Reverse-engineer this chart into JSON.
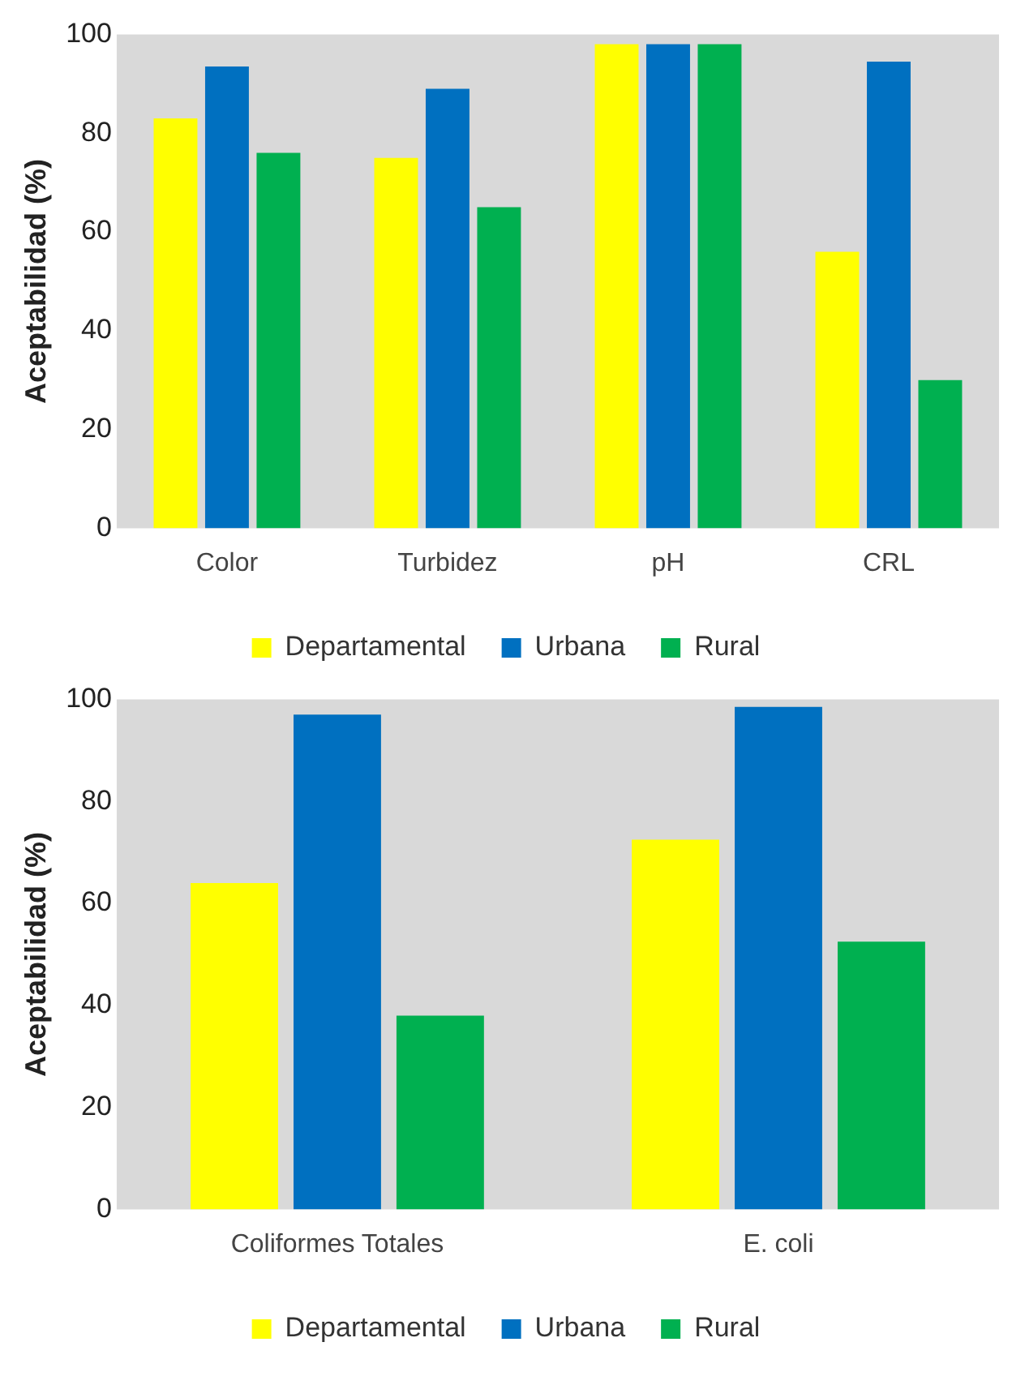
{
  "chart_data": [
    {
      "type": "bar",
      "ylabel": "Aceptabilidad (%)",
      "categories": [
        "Color",
        "Turbidez",
        "pH",
        "CRL"
      ],
      "ylim": [
        0,
        100
      ],
      "yticks": [
        0,
        20,
        40,
        60,
        80,
        100
      ],
      "grid": false,
      "legend": "bottom",
      "series": [
        {
          "name": "Departamental",
          "color": "#ffff00",
          "values": [
            83,
            75,
            98,
            56
          ]
        },
        {
          "name": "Urbana",
          "color": "#0070c0",
          "values": [
            93.5,
            89,
            98,
            94.5
          ]
        },
        {
          "name": "Rural",
          "color": "#00b050",
          "values": [
            76,
            65,
            98,
            30
          ]
        }
      ]
    },
    {
      "type": "bar",
      "ylabel": "Aceptabilidad (%)",
      "categories": [
        "Coliformes Totales",
        "E. coli"
      ],
      "ylim": [
        0,
        100
      ],
      "yticks": [
        0,
        20,
        40,
        60,
        80,
        100
      ],
      "grid": false,
      "legend": "bottom",
      "series": [
        {
          "name": "Departamental",
          "color": "#ffff00",
          "values": [
            64,
            72.5
          ]
        },
        {
          "name": "Urbana",
          "color": "#0070c0",
          "values": [
            97,
            98.5
          ]
        },
        {
          "name": "Rural",
          "color": "#00b050",
          "values": [
            38,
            52.5
          ]
        }
      ]
    }
  ]
}
